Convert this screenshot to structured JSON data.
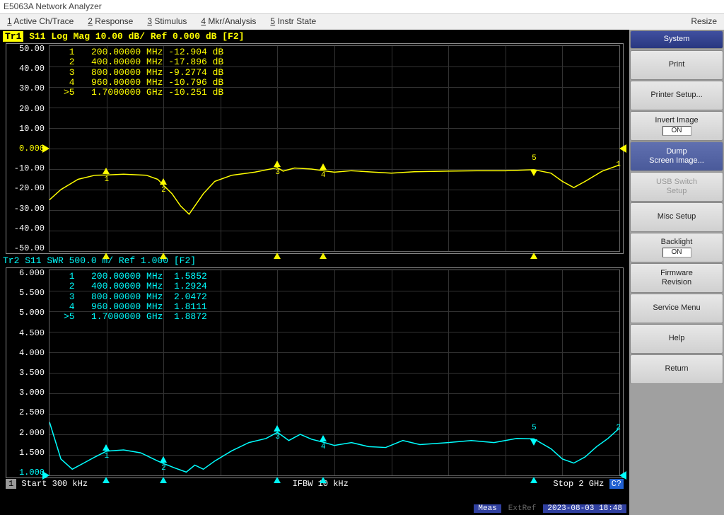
{
  "window": {
    "title": "E5063A Network Analyzer"
  },
  "menubar": {
    "items": [
      {
        "key": "1",
        "label": "Active Ch/Trace"
      },
      {
        "key": "2",
        "label": "Response"
      },
      {
        "key": "3",
        "label": "Stimulus"
      },
      {
        "key": "4",
        "label": "Mkr/Analysis"
      },
      {
        "key": "5",
        "label": "Instr State"
      }
    ],
    "right": "Resize"
  },
  "softkeys": {
    "header": "System",
    "items": [
      {
        "label": "Print"
      },
      {
        "label": "Printer Setup..."
      },
      {
        "label": "Invert Image",
        "sub": "ON"
      },
      {
        "label": "Dump\nScreen Image...",
        "selected": true
      },
      {
        "label": "USB Switch\nSetup",
        "disabled": true
      },
      {
        "label": "Misc Setup"
      },
      {
        "label": "Backlight",
        "sub": "ON"
      },
      {
        "label": "Firmware\nRevision"
      },
      {
        "label": "Service Menu"
      },
      {
        "label": "Help"
      },
      {
        "label": "Return"
      }
    ]
  },
  "trace1": {
    "badge": "Tr1",
    "header": " S11 Log Mag 10.00 dB/ Ref 0.000 dB [F2]",
    "color": "#ffff00",
    "type": "line",
    "ylim": [
      -50,
      50
    ],
    "ytick_step": 10,
    "ref_value": 0.0,
    "ylabels": [
      "50.00",
      "40.00",
      "30.00",
      "20.00",
      "10.00",
      "0.000",
      "-10.00",
      "-20.00",
      "-30.00",
      "-40.00",
      "-50.00"
    ],
    "ref_index": 5,
    "markers_table": [
      " 1   200.00000 MHz -12.904 dB",
      " 2   400.00000 MHz -17.896 dB",
      " 3   800.00000 MHz -9.2774 dB",
      " 4   960.00000 MHz -10.796 dB",
      ">5   1.7000000 GHz -10.251 dB"
    ],
    "markers": [
      {
        "n": "1",
        "freq_hz": 200000000.0,
        "y": -12.904
      },
      {
        "n": "2",
        "freq_hz": 400000000.0,
        "y": -17.896
      },
      {
        "n": "3",
        "freq_hz": 800000000.0,
        "y": -9.2774
      },
      {
        "n": "4",
        "freq_hz": 960000000.0,
        "y": -10.796
      },
      {
        "n": "5",
        "freq_hz": 1700000000.0,
        "y": -10.251,
        "active": true
      }
    ],
    "trace_points": [
      [
        0,
        -25
      ],
      [
        0.02,
        -20
      ],
      [
        0.05,
        -15
      ],
      [
        0.08,
        -13
      ],
      [
        0.1,
        -12.9
      ],
      [
        0.13,
        -12.5
      ],
      [
        0.17,
        -13
      ],
      [
        0.19,
        -15
      ],
      [
        0.2,
        -17.9
      ],
      [
        0.215,
        -22
      ],
      [
        0.23,
        -28
      ],
      [
        0.245,
        -32
      ],
      [
        0.255,
        -28
      ],
      [
        0.27,
        -22
      ],
      [
        0.29,
        -16
      ],
      [
        0.32,
        -13
      ],
      [
        0.36,
        -11.5
      ],
      [
        0.4,
        -9.3
      ],
      [
        0.41,
        -11
      ],
      [
        0.43,
        -9.5
      ],
      [
        0.46,
        -10
      ],
      [
        0.48,
        -10.8
      ],
      [
        0.5,
        -11.5
      ],
      [
        0.53,
        -10.8
      ],
      [
        0.57,
        -11.5
      ],
      [
        0.6,
        -12
      ],
      [
        0.64,
        -11.3
      ],
      [
        0.7,
        -11
      ],
      [
        0.75,
        -10.8
      ],
      [
        0.8,
        -10.8
      ],
      [
        0.85,
        -10.3
      ],
      [
        0.88,
        -12
      ],
      [
        0.9,
        -16
      ],
      [
        0.92,
        -19
      ],
      [
        0.94,
        -16
      ],
      [
        0.97,
        -11
      ],
      [
        1.0,
        -8
      ]
    ]
  },
  "trace2": {
    "header": "Tr2 S11 SWR 500.0 m/ Ref 1.000  [F2]",
    "color": "#00ffff",
    "type": "line",
    "ylim": [
      1.0,
      6.0
    ],
    "ytick_step": 0.5,
    "ref_value": 1.0,
    "ylabels": [
      "6.000",
      "5.500",
      "5.000",
      "4.500",
      "4.000",
      "3.500",
      "3.000",
      "2.500",
      "2.000",
      "1.500",
      "1.000"
    ],
    "ref_index": 10,
    "markers_table": [
      " 1   200.00000 MHz  1.5852",
      " 2   400.00000 MHz  1.2924",
      " 3   800.00000 MHz  2.0472",
      " 4   960.00000 MHz  1.8111",
      ">5   1.7000000 GHz  1.8872"
    ],
    "markers": [
      {
        "n": "1",
        "freq_hz": 200000000.0,
        "y": 1.5852
      },
      {
        "n": "2",
        "freq_hz": 400000000.0,
        "y": 1.2924
      },
      {
        "n": "3",
        "freq_hz": 800000000.0,
        "y": 2.0472
      },
      {
        "n": "4",
        "freq_hz": 960000000.0,
        "y": 1.8111
      },
      {
        "n": "5",
        "freq_hz": 1700000000.0,
        "y": 1.8872,
        "active": true
      }
    ],
    "trace_points": [
      [
        0,
        2.3
      ],
      [
        0.02,
        1.4
      ],
      [
        0.04,
        1.15
      ],
      [
        0.06,
        1.3
      ],
      [
        0.08,
        1.45
      ],
      [
        0.1,
        1.59
      ],
      [
        0.13,
        1.62
      ],
      [
        0.16,
        1.55
      ],
      [
        0.19,
        1.35
      ],
      [
        0.2,
        1.29
      ],
      [
        0.22,
        1.18
      ],
      [
        0.24,
        1.08
      ],
      [
        0.255,
        1.25
      ],
      [
        0.27,
        1.15
      ],
      [
        0.29,
        1.35
      ],
      [
        0.32,
        1.6
      ],
      [
        0.35,
        1.8
      ],
      [
        0.38,
        1.9
      ],
      [
        0.4,
        2.05
      ],
      [
        0.42,
        1.85
      ],
      [
        0.44,
        2.0
      ],
      [
        0.46,
        1.88
      ],
      [
        0.48,
        1.81
      ],
      [
        0.5,
        1.73
      ],
      [
        0.53,
        1.8
      ],
      [
        0.56,
        1.7
      ],
      [
        0.59,
        1.68
      ],
      [
        0.62,
        1.85
      ],
      [
        0.65,
        1.75
      ],
      [
        0.7,
        1.8
      ],
      [
        0.74,
        1.85
      ],
      [
        0.78,
        1.8
      ],
      [
        0.82,
        1.9
      ],
      [
        0.85,
        1.89
      ],
      [
        0.88,
        1.65
      ],
      [
        0.9,
        1.4
      ],
      [
        0.92,
        1.3
      ],
      [
        0.94,
        1.45
      ],
      [
        0.96,
        1.7
      ],
      [
        0.98,
        1.9
      ],
      [
        1.0,
        2.15
      ]
    ]
  },
  "xaxis": {
    "start_hz": 300000.0,
    "stop_hz": 2000000000.0,
    "grid_divisions": 10
  },
  "bottom": {
    "ch": "1",
    "start": "Start 300 kHz",
    "ifbw": "IFBW 10 kHz",
    "stop": "Stop 2 GHz",
    "cq": "C?"
  },
  "status": {
    "meas": "Meas",
    "ext": "ExtRef",
    "datetime": "2023-08-03 18:48"
  },
  "colors": {
    "background": "#000000",
    "grid": "#333333",
    "trace1": "#ffff00",
    "trace2": "#00ffff",
    "text": "#ffffff"
  }
}
